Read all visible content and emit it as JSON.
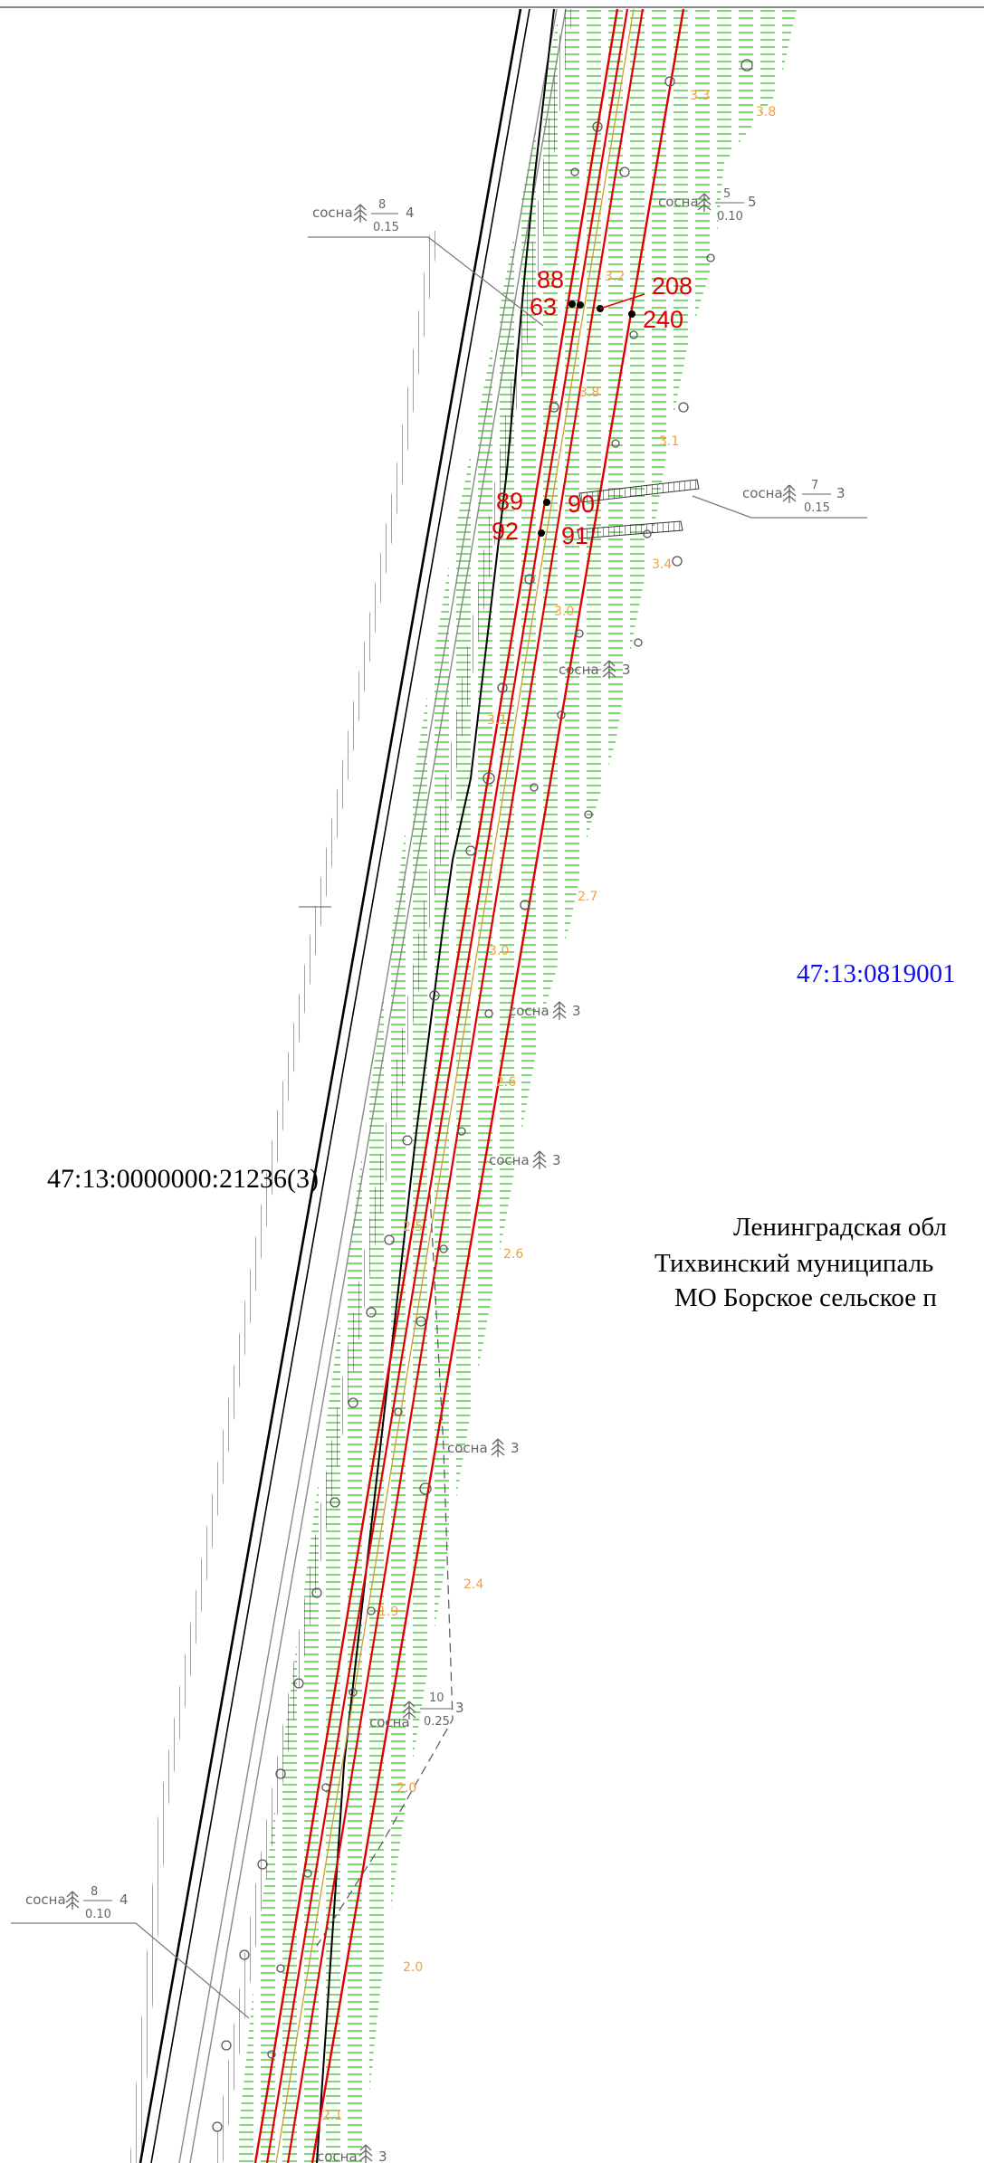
{
  "parcels": {
    "left": "47:13:0000000:21236(3)",
    "right": "47:13:0819001"
  },
  "admin": {
    "line1": "Ленинградская обл",
    "line2": "Тихвинский муниципаль",
    "line3": "МО Борское сельское п"
  },
  "points": {
    "p88": "88",
    "p63": "63",
    "p208": "208",
    "p240": "240",
    "p89": "89",
    "p90": "90",
    "p92": "92",
    "p91": "91"
  },
  "trees": {
    "t1": {
      "name": "сосна",
      "num": "8",
      "den": "0.15",
      "count": "4"
    },
    "t2": {
      "name": "сосна",
      "num": "5",
      "den": "0.10",
      "count": "5"
    },
    "t3": {
      "name": "сосна",
      "num": "7",
      "den": "0.15",
      "count": "3"
    },
    "t4": {
      "name": "сосна",
      "count": "3"
    },
    "t5": {
      "name": "сосна",
      "count": "3"
    },
    "t6": {
      "name": "сосна",
      "count": "3"
    },
    "t7": {
      "name": "сосна",
      "count": "3"
    },
    "t8": {
      "name": "сосна",
      "num": "10",
      "den": "0.25",
      "count": "3"
    },
    "t9": {
      "name": "сосна",
      "num": "8",
      "den": "0.10",
      "count": "4"
    },
    "t10": {
      "name": "сосна",
      "count": "3"
    }
  },
  "elevations": {
    "e1": "3.3",
    "e2": "3.8",
    "e3": "3.2",
    "e4": "3.8",
    "e5": "3.1",
    "e6": "3.4",
    "e7": "3.0",
    "e8": "3.1",
    "e9": "2.7",
    "e10": "3.0",
    "e11": "2.6",
    "e12": "2.6",
    "e13": "2.5",
    "e14": "2.4",
    "e15": "1.9",
    "e16": "2.0",
    "e17": "2.0",
    "e18": "2.1"
  },
  "colors": {
    "boundary": "#e00000",
    "vegetation": "#33cc33",
    "road": "#000000",
    "parcel_blue": "#1010ee",
    "elevation": "#f0a040"
  }
}
